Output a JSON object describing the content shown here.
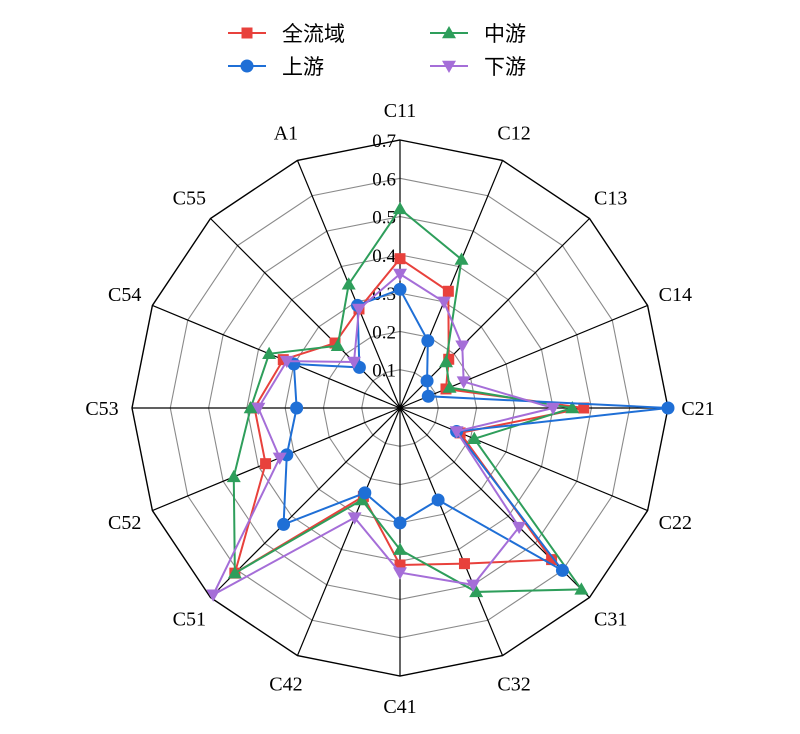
{
  "chart_data": {
    "type": "radar",
    "categories": [
      "C11",
      "C12",
      "C13",
      "C14",
      "C21",
      "C22",
      "C31",
      "C32",
      "C41",
      "C42",
      "C51",
      "C52",
      "C53",
      "C54",
      "C55",
      "A1"
    ],
    "rlim": [
      0,
      0.7
    ],
    "ticks": [
      0.1,
      0.2,
      0.3,
      0.4,
      0.5,
      0.6,
      0.7
    ],
    "tick_labels": [
      "0.1",
      "0.2",
      "0.3",
      "0.4",
      "0.5",
      "0.6",
      "0.7"
    ],
    "grid": true,
    "legend_position": "top",
    "series": [
      {
        "name": "全流域",
        "color": "#e8413c",
        "marker": "square",
        "values": [
          0.39,
          0.33,
          0.18,
          0.13,
          0.48,
          0.17,
          0.56,
          0.44,
          0.41,
          0.25,
          0.61,
          0.38,
          0.38,
          0.33,
          0.24,
          0.28
        ]
      },
      {
        "name": "中游",
        "color": "#2e9e5b",
        "marker": "triangle-up",
        "values": [
          0.52,
          0.42,
          0.17,
          0.14,
          0.45,
          0.21,
          0.67,
          0.52,
          0.37,
          0.26,
          0.61,
          0.47,
          0.39,
          0.37,
          0.23,
          0.35
        ]
      },
      {
        "name": "上游",
        "color": "#1f6fd6",
        "marker": "circle",
        "values": [
          0.31,
          0.19,
          0.1,
          0.08,
          0.7,
          0.16,
          0.6,
          0.26,
          0.3,
          0.24,
          0.43,
          0.32,
          0.27,
          0.3,
          0.15,
          0.29
        ]
      },
      {
        "name": "下游",
        "color": "#a56ed8",
        "marker": "triangle-down",
        "values": [
          0.35,
          0.3,
          0.23,
          0.18,
          0.4,
          0.16,
          0.44,
          0.5,
          0.43,
          0.31,
          0.69,
          0.34,
          0.37,
          0.32,
          0.17,
          0.28
        ]
      }
    ]
  }
}
